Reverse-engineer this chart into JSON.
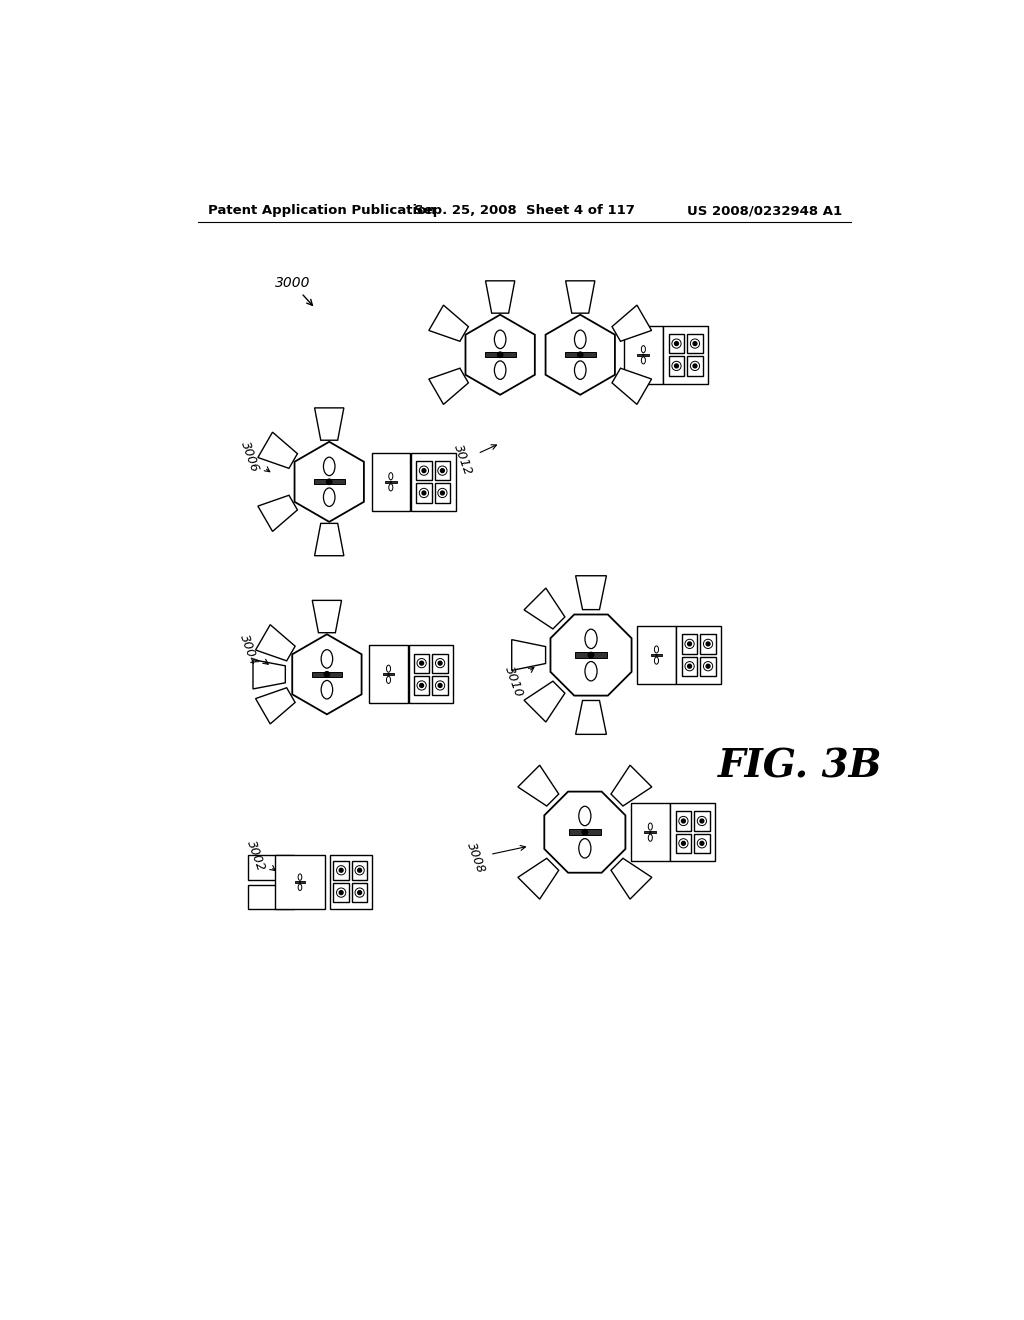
{
  "background_color": "#ffffff",
  "header_left": "Patent Application Publication",
  "header_center": "Sep. 25, 2008  Sheet 4 of 117",
  "header_right": "US 2008/0232948 A1",
  "fig_label": "FIG. 3B"
}
